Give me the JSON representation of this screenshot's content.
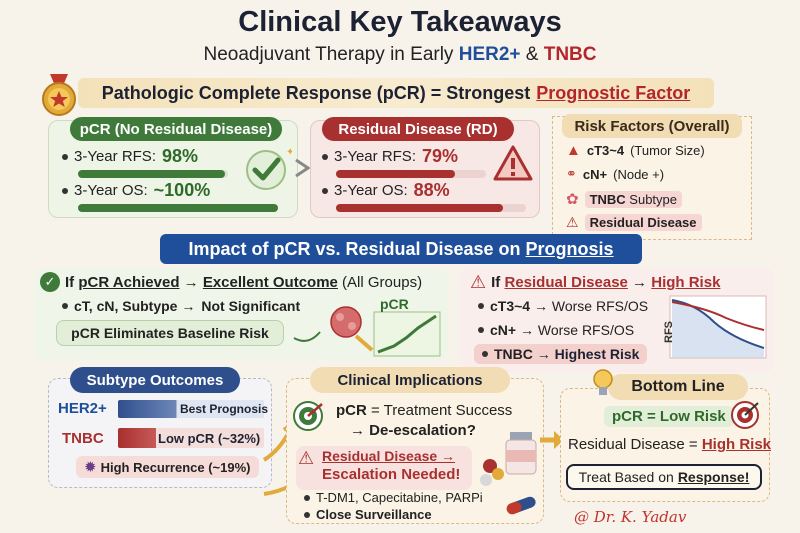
{
  "header": {
    "title": "Clinical Key Takeaways",
    "subtitle_prefix": "Neoadjuvant Therapy in Early ",
    "subtitle_her2": "HER2+",
    "subtitle_amp": " & ",
    "subtitle_tnbc": "TNBC"
  },
  "banner": {
    "prefix": "Pathologic Complete Response (pCR) = Strongest",
    "highlight": "Prognostic Factor"
  },
  "pcr": {
    "heading": "pCR (No Residual Disease)",
    "rfs_label": "3-Year RFS:",
    "rfs_value": "98%",
    "rfs_fraction": 0.98,
    "os_label": "3-Year OS:",
    "os_value": "~100%",
    "os_fraction": 1.0
  },
  "rd": {
    "heading": "Residual Disease (RD)",
    "rfs_label": "3-Year RFS:",
    "rfs_value": "79%",
    "rfs_fraction": 0.79,
    "os_label": "3-Year OS:",
    "os_value": "88%",
    "os_fraction": 0.88
  },
  "risk_factors": {
    "heading": "Risk Factors (Overall)",
    "items": [
      {
        "icon": "arrow-up-icon",
        "bold": "cT3~4",
        "rest": " (Tumor Size)"
      },
      {
        "icon": "nodes-icon",
        "bold": "cN+",
        "rest": " (Node +)"
      },
      {
        "icon": "cell-icon",
        "bold": "TNBC",
        "rest": " Subtype"
      },
      {
        "icon": "warning-icon",
        "bold": "Residual Disease",
        "rest": ""
      }
    ]
  },
  "impact": {
    "prefix": "Impact of pCR vs. Residual Disease on",
    "highlight": "Prognosis"
  },
  "if_pcr": {
    "title_prefix": "If ",
    "title_pcr": "pCR Achieved",
    "title_arrow": " → ",
    "title_outcome": "Excellent Outcome",
    "title_suffix": " (All Groups)",
    "bullet_prefix": "cT, cN, Subtype →",
    "bullet_bold": "Not Significant",
    "pill": "pCR Eliminates Baseline Risk",
    "graphic_label": "pCR"
  },
  "if_rd": {
    "title_prefix": "If ",
    "title_rd": "Residual Disease",
    "title_arrow": " → ",
    "title_risk": "High Risk",
    "items": [
      {
        "bold": "cT3~4",
        "rest": " → Worse RFS/OS"
      },
      {
        "bold": "cN+",
        "rest": " → Worse RFS/OS"
      },
      {
        "bold": "TNBC",
        "rest": " → Highest Risk"
      }
    ],
    "chart_axis_label": "RFS"
  },
  "subtype": {
    "heading": "Subtype Outcomes",
    "her2_label": "HER2+",
    "her2_text": "Best Prognosis",
    "tnbc_label": "TNBC",
    "tnbc_text": "Low pCR (~32%)",
    "high_rec": "High Recurrence (~19%)"
  },
  "clinical": {
    "heading": "Clinical Implications",
    "line1_bold": "pCR",
    "line1_rest": " = Treatment Success",
    "line2": "→ De-escalation?",
    "rd_title1": "Residual Disease →",
    "rd_title2": "Escalation Needed!",
    "bullet1": "T-DM1, Capecitabine, PARPi",
    "bullet2": "Close Surveillance"
  },
  "bottom_line": {
    "heading": "Bottom Line",
    "line1": "pCR = Low Risk",
    "line2_prefix": "Residual Disease =",
    "line2_bold": "High Risk",
    "line3_prefix": "Treat Based on",
    "line3_bold": "Response!"
  },
  "signature": "@ Dr. K. Yadav",
  "colors": {
    "green": "#3f7a3a",
    "red": "#a8302f",
    "blue": "#1f4f9a",
    "gold": "#f1dcb4"
  }
}
